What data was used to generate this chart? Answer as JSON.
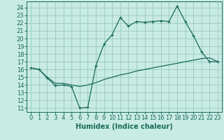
{
  "title": "",
  "xlabel": "Humidex (Indice chaleur)",
  "background_color": "#c8ebe3",
  "grid_color": "#9ecec5",
  "line_color": "#1a6b5a",
  "x_ticks": [
    0,
    1,
    2,
    3,
    4,
    5,
    6,
    7,
    8,
    9,
    10,
    11,
    12,
    13,
    14,
    15,
    16,
    17,
    18,
    19,
    20,
    21,
    22,
    23
  ],
  "y_ticks": [
    11,
    12,
    13,
    14,
    15,
    16,
    17,
    18,
    19,
    20,
    21,
    22,
    23,
    24
  ],
  "ylim": [
    10.5,
    24.8
  ],
  "xlim": [
    -0.5,
    23.5
  ],
  "line1_x": [
    0,
    1,
    2,
    3,
    4,
    5,
    6,
    7,
    8,
    9,
    10,
    11,
    12,
    13,
    14,
    15,
    16,
    17,
    18,
    19,
    20,
    21,
    22,
    23
  ],
  "line1_y": [
    16.2,
    16.0,
    14.9,
    13.9,
    14.0,
    13.8,
    11.0,
    11.1,
    16.5,
    19.3,
    20.5,
    22.7,
    21.6,
    22.2,
    22.1,
    22.2,
    22.3,
    22.2,
    24.2,
    22.2,
    20.4,
    18.3,
    17.0,
    17.0
  ],
  "line2_x": [
    0,
    1,
    2,
    3,
    4,
    5,
    6,
    7,
    8,
    9,
    10,
    11,
    12,
    13,
    14,
    15,
    16,
    17,
    18,
    19,
    20,
    21,
    22,
    23
  ],
  "line2_y": [
    16.2,
    16.0,
    15.0,
    14.2,
    14.2,
    14.0,
    13.8,
    14.0,
    14.3,
    14.7,
    15.0,
    15.3,
    15.5,
    15.8,
    16.0,
    16.2,
    16.4,
    16.6,
    16.8,
    17.0,
    17.2,
    17.4,
    17.5,
    17.0
  ],
  "xlabel_fontsize": 7,
  "tick_fontsize": 6
}
